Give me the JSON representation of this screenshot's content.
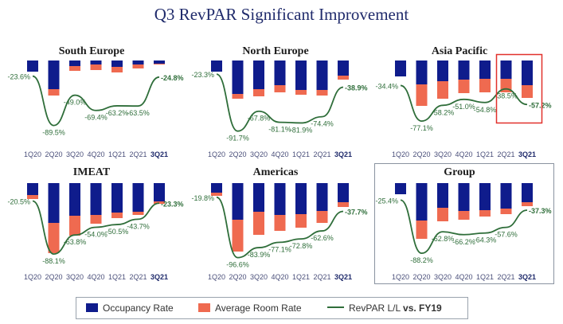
{
  "title": "Q3 RevPAR Significant Improvement",
  "colors": {
    "occupancy": "#0f1c8c",
    "room_rate": "#ef6a50",
    "revpar": "#2f6e3a",
    "title": "#1f2a6b",
    "highlight": "#e1312c",
    "group_border": "#8a93a0"
  },
  "legend": {
    "occupancy": "Occupancy Rate",
    "room_rate": "Average Room Rate",
    "revpar_prefix": "RevPAR L/L ",
    "revpar_bold": "vs. FY19"
  },
  "chart_data": [
    {
      "type": "bar",
      "title": "South Europe",
      "categories": [
        "1Q20",
        "2Q20",
        "3Q20",
        "4Q20",
        "1Q21",
        "2Q21",
        "3Q21"
      ],
      "occupancy": [
        14,
        36,
        7,
        5,
        8,
        5,
        4
      ],
      "room_rate": [
        0,
        8,
        6,
        7,
        7,
        5,
        1
      ],
      "revpar": [
        -23.6,
        -89.5,
        -49.0,
        -69.4,
        -63.2,
        -63.5,
        -24.8
      ],
      "revpar_labels": [
        "-23.6%",
        "-89.5%",
        "-49.0%",
        "-69.4%",
        "-63.2%",
        "-63.5%",
        "-24.8%"
      ]
    },
    {
      "type": "bar",
      "title": "North Europe",
      "categories": [
        "1Q20",
        "2Q20",
        "3Q20",
        "4Q20",
        "1Q21",
        "2Q21",
        "3Q21"
      ],
      "occupancy": [
        14,
        42,
        36,
        31,
        37,
        37,
        19
      ],
      "room_rate": [
        0,
        6,
        9,
        9,
        6,
        7,
        5
      ],
      "revpar": [
        -23.3,
        -91.7,
        -67.8,
        -81.1,
        -81.9,
        -74.4,
        -38.9
      ],
      "revpar_labels": [
        "-23.3%",
        "-91.7%",
        "-67.8%",
        "-81.1%",
        "-81.9%",
        "-74.4%",
        "-38.9%"
      ]
    },
    {
      "type": "bar",
      "title": "Asia Pacific",
      "categories": [
        "1Q20",
        "2Q20",
        "3Q20",
        "4Q20",
        "1Q21",
        "2Q21",
        "3Q21"
      ],
      "occupancy": [
        20,
        30,
        26,
        24,
        23,
        23,
        31
      ],
      "room_rate": [
        0,
        27,
        22,
        17,
        17,
        17,
        16
      ],
      "revpar": [
        -34.4,
        -77.1,
        -58.2,
        -51.0,
        -54.8,
        -38.5,
        -57.2
      ],
      "revpar_labels": [
        "-34.4%",
        "-77.1%",
        "-58.2%",
        "-51.0%",
        "-54.8%",
        "-38.5%",
        "-57.2%"
      ]
    },
    {
      "type": "bar",
      "title": "IMEAT",
      "categories": [
        "1Q20",
        "2Q20",
        "3Q20",
        "4Q20",
        "1Q21",
        "2Q21",
        "3Q21"
      ],
      "occupancy": [
        15,
        50,
        41,
        40,
        37,
        36,
        23
      ],
      "room_rate": [
        5,
        38,
        25,
        11,
        7,
        4,
        3
      ],
      "revpar": [
        -20.5,
        -88.1,
        -63.8,
        -54.0,
        -50.5,
        -43.7,
        -23.3
      ],
      "revpar_labels": [
        "-20.5%",
        "-88.1%",
        "-63.8%",
        "-54.0%",
        "-50.5%",
        "-43.7%",
        "-23.3%"
      ]
    },
    {
      "type": "bar",
      "title": "Americas",
      "categories": [
        "1Q20",
        "2Q20",
        "3Q20",
        "4Q20",
        "1Q21",
        "2Q21",
        "3Q21"
      ],
      "occupancy": [
        12,
        46,
        36,
        40,
        39,
        35,
        24
      ],
      "room_rate": [
        4,
        40,
        29,
        20,
        17,
        15,
        6
      ],
      "revpar": [
        -19.8,
        -96.6,
        -83.9,
        -77.1,
        -72.8,
        -62.6,
        -37.7
      ],
      "revpar_labels": [
        "-19.8%",
        "-96.6%",
        "-83.9%",
        "-77.1%",
        "-72.8%",
        "-62.6%",
        "-37.7%"
      ]
    },
    {
      "type": "bar",
      "title": "Group",
      "categories": [
        "1Q20",
        "2Q20",
        "3Q20",
        "4Q20",
        "1Q21",
        "2Q21",
        "3Q21"
      ],
      "occupancy": [
        14,
        47,
        31,
        35,
        34,
        32,
        24
      ],
      "room_rate": [
        0,
        23,
        17,
        11,
        8,
        7,
        5
      ],
      "revpar": [
        -25.4,
        -88.2,
        -62.8,
        -66.2,
        -64.3,
        -57.6,
        -37.3
      ],
      "revpar_labels": [
        "-25.4%",
        "-88.2%",
        "-62.8%",
        "-66.2%",
        "-64.3%",
        "-57.6%",
        "-37.3%"
      ]
    }
  ]
}
